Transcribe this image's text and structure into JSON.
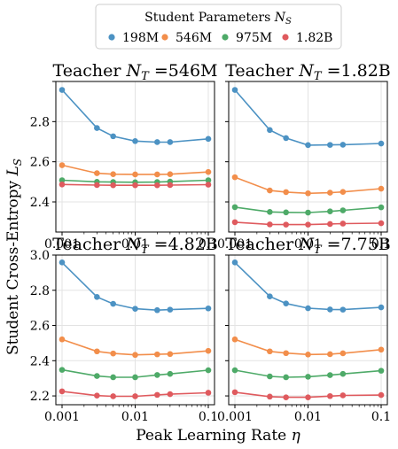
{
  "legend": {
    "title_main": "Student Parameters ",
    "title_sym": "N",
    "title_sub": "S",
    "entries": [
      {
        "label": "198M",
        "color": "#4c92c3"
      },
      {
        "label": "546M",
        "color": "#f28e4b"
      },
      {
        "label": "975M",
        "color": "#4eaa68"
      },
      {
        "label": "1.82B",
        "color": "#df5a5e"
      }
    ]
  },
  "xlabel": {
    "text": "Peak Learning Rate ",
    "sym": "η"
  },
  "ylabel": {
    "text": "Student Cross-Entropy ",
    "sym": "L",
    "sub": "S"
  },
  "chart_data": [
    {
      "type": "line",
      "title": "Teacher N_T =546M",
      "title_text": "Teacher ",
      "title_sym": "N",
      "title_sub": "T",
      "title_val": " =546M",
      "x": [
        0.001,
        0.003,
        0.005,
        0.01,
        0.02,
        0.03,
        0.1
      ],
      "xscale": "log",
      "xticks": [
        "0.001",
        "0.01",
        "0.1"
      ],
      "ylim": [
        2.25,
        3.0
      ],
      "yticks": [
        "2.4",
        "2.6",
        "2.8"
      ],
      "grid": true,
      "series": [
        {
          "name": "198M",
          "values": [
            2.958,
            2.768,
            2.727,
            2.703,
            2.698,
            2.698,
            2.714
          ]
        },
        {
          "name": "546M",
          "values": [
            2.583,
            2.543,
            2.538,
            2.537,
            2.537,
            2.538,
            2.549
          ]
        },
        {
          "name": "975M",
          "values": [
            2.508,
            2.5,
            2.499,
            2.498,
            2.499,
            2.501,
            2.508
          ]
        },
        {
          "name": "1.82B",
          "values": [
            2.487,
            2.484,
            2.483,
            2.483,
            2.483,
            2.484,
            2.486
          ]
        }
      ]
    },
    {
      "type": "line",
      "title": "Teacher N_T =1.82B",
      "title_text": "Teacher ",
      "title_sym": "N",
      "title_sub": "T",
      "title_val": " =1.82B",
      "x": [
        0.001,
        0.003,
        0.005,
        0.01,
        0.02,
        0.03,
        0.1
      ],
      "xscale": "log",
      "xticks": [
        "0.001",
        "0.01",
        "0.1"
      ],
      "ylim": [
        2.25,
        3.0
      ],
      "yticks": [],
      "grid": true,
      "series": [
        {
          "name": "198M",
          "values": [
            2.958,
            2.758,
            2.718,
            2.683,
            2.684,
            2.685,
            2.691
          ]
        },
        {
          "name": "546M",
          "values": [
            2.523,
            2.457,
            2.449,
            2.443,
            2.446,
            2.45,
            2.466
          ]
        },
        {
          "name": "975M",
          "values": [
            2.374,
            2.35,
            2.348,
            2.347,
            2.353,
            2.358,
            2.373
          ]
        },
        {
          "name": "1.82B",
          "values": [
            2.299,
            2.288,
            2.287,
            2.287,
            2.29,
            2.292,
            2.294
          ]
        }
      ]
    },
    {
      "type": "line",
      "title": "Teacher N_T =4.82B",
      "title_text": "Teacher ",
      "title_sym": "N",
      "title_sub": "T",
      "title_val": " =4.82B",
      "x": [
        0.001,
        0.003,
        0.005,
        0.01,
        0.02,
        0.03,
        0.1
      ],
      "xscale": "log",
      "xticks": [
        "0.001",
        "0.01",
        "0.1"
      ],
      "ylim": [
        2.15,
        3.0
      ],
      "yticks": [
        "2.2",
        "2.4",
        "2.6",
        "2.8",
        "3.0"
      ],
      "grid": true,
      "series": [
        {
          "name": "198M",
          "values": [
            2.958,
            2.762,
            2.723,
            2.695,
            2.687,
            2.69,
            2.697
          ]
        },
        {
          "name": "546M",
          "values": [
            2.521,
            2.453,
            2.441,
            2.433,
            2.436,
            2.438,
            2.456
          ]
        },
        {
          "name": "975M",
          "values": [
            2.348,
            2.313,
            2.306,
            2.306,
            2.319,
            2.325,
            2.346
          ]
        },
        {
          "name": "1.82B",
          "values": [
            2.226,
            2.202,
            2.198,
            2.198,
            2.206,
            2.21,
            2.218
          ]
        }
      ]
    },
    {
      "type": "line",
      "title": "Teacher N_T =7.75B",
      "title_text": "Teacher ",
      "title_sym": "N",
      "title_sub": "T",
      "title_val": " =7.75B",
      "x": [
        0.001,
        0.003,
        0.005,
        0.01,
        0.02,
        0.03,
        0.1
      ],
      "xscale": "log",
      "xticks": [
        "0.001",
        "0.01",
        "0.1"
      ],
      "ylim": [
        2.15,
        3.0
      ],
      "yticks": [],
      "grid": true,
      "series": [
        {
          "name": "198M",
          "values": [
            2.958,
            2.765,
            2.725,
            2.698,
            2.691,
            2.69,
            2.703
          ]
        },
        {
          "name": "546M",
          "values": [
            2.521,
            2.453,
            2.443,
            2.435,
            2.437,
            2.442,
            2.463
          ]
        },
        {
          "name": "975M",
          "values": [
            2.346,
            2.311,
            2.306,
            2.309,
            2.318,
            2.325,
            2.343
          ]
        },
        {
          "name": "1.82B",
          "values": [
            2.221,
            2.196,
            2.192,
            2.192,
            2.199,
            2.203,
            2.205
          ]
        }
      ]
    }
  ]
}
